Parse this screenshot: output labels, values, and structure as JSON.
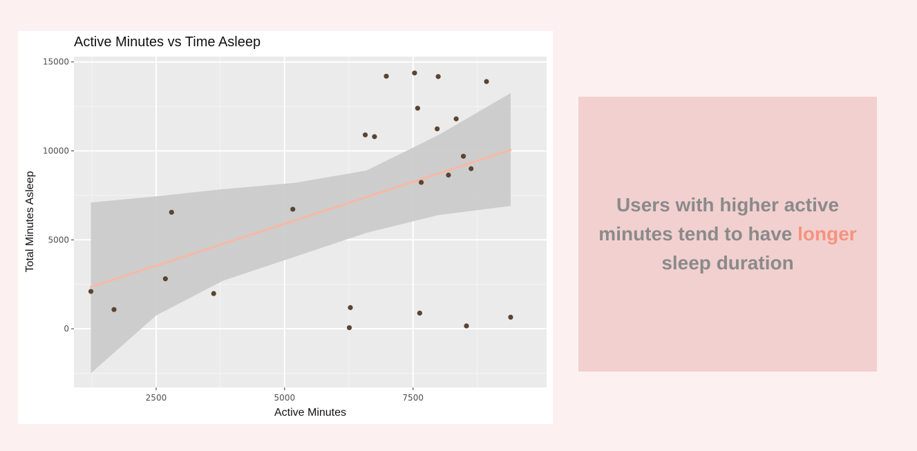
{
  "chart_data": {
    "type": "scatter",
    "title": "Active Minutes vs Time Asleep",
    "xlabel": "Active Minutes",
    "ylabel": "Total Minutes Asleep",
    "xlim": [
      900,
      10100
    ],
    "ylim": [
      -3300,
      15300
    ],
    "x_ticks": [
      2500,
      5000,
      7500
    ],
    "y_ticks": [
      0,
      5000,
      10000,
      15000
    ],
    "grid": true,
    "points": [
      {
        "x": 1230,
        "y": 2100
      },
      {
        "x": 1680,
        "y": 1080
      },
      {
        "x": 2680,
        "y": 2810
      },
      {
        "x": 2800,
        "y": 6550
      },
      {
        "x": 3620,
        "y": 1980
      },
      {
        "x": 5160,
        "y": 6720
      },
      {
        "x": 6260,
        "y": 60
      },
      {
        "x": 6280,
        "y": 1190
      },
      {
        "x": 6570,
        "y": 10900
      },
      {
        "x": 6750,
        "y": 10800
      },
      {
        "x": 6980,
        "y": 14200
      },
      {
        "x": 7530,
        "y": 14380
      },
      {
        "x": 7590,
        "y": 12400
      },
      {
        "x": 7630,
        "y": 880
      },
      {
        "x": 7660,
        "y": 8230
      },
      {
        "x": 7970,
        "y": 11240
      },
      {
        "x": 7990,
        "y": 14180
      },
      {
        "x": 8190,
        "y": 8640
      },
      {
        "x": 8340,
        "y": 11800
      },
      {
        "x": 8480,
        "y": 9700
      },
      {
        "x": 8540,
        "y": 160
      },
      {
        "x": 8630,
        "y": 9000
      },
      {
        "x": 8930,
        "y": 13900
      },
      {
        "x": 9400,
        "y": 650
      }
    ],
    "trend_line": {
      "x": [
        1230,
        9400
      ],
      "y": [
        2350,
        10050
      ],
      "color": "#f8b8a4"
    },
    "confidence_band": {
      "x": [
        1230,
        2500,
        3800,
        5200,
        6600,
        8000,
        9400
      ],
      "upper": [
        7100,
        7450,
        7850,
        8200,
        8900,
        10900,
        13250
      ],
      "lower": [
        -2500,
        750,
        2700,
        4050,
        5400,
        6400,
        6900
      ],
      "color": "#cbcbcb"
    },
    "point_color": "#5c4430",
    "panel_background": "#ebebeb"
  },
  "callout": {
    "before": "Users with higher active minutes tend to have ",
    "highlight": "longer",
    "after": " sleep duration",
    "text_color": "#8a8a8a",
    "highlight_color": "#f4937f",
    "background": "#f2d0d0"
  }
}
